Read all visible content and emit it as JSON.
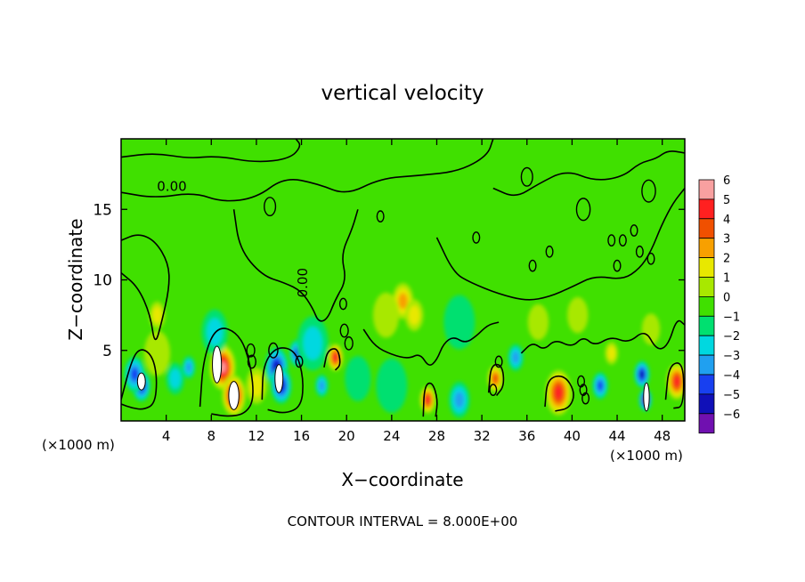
{
  "chart_data": {
    "type": "heatmap",
    "title": "vertical velocity",
    "xlabel": "X−coordinate",
    "ylabel": "Z−coordinate",
    "x_unit_left": "(×1000 m)",
    "x_unit_right": "(×1000 m)",
    "footer": "CONTOUR INTERVAL = 8.000E+00",
    "xlim": [
      0,
      50
    ],
    "ylim": [
      0,
      20
    ],
    "x_ticks": [
      4,
      8,
      12,
      16,
      20,
      24,
      28,
      32,
      36,
      40,
      44,
      48
    ],
    "x_tick_labels": [
      "4",
      "8",
      "12",
      "16",
      "20",
      "24",
      "28",
      "32",
      "36",
      "40",
      "44",
      "48"
    ],
    "y_ticks": [
      5,
      10,
      15
    ],
    "y_tick_labels": [
      "5",
      "10",
      "15"
    ],
    "contour_labels": [
      {
        "text": "0.00",
        "x": 4.5,
        "y": 16.3,
        "rotate": 0
      },
      {
        "text": "0.00",
        "x": 16.5,
        "y": 9.8,
        "rotate": -90
      }
    ],
    "colorbar": {
      "levels": [
        6,
        5,
        4,
        3,
        2,
        1,
        0,
        -1,
        -2,
        -3,
        -4,
        -5,
        -6
      ],
      "labels": [
        "6",
        "5",
        "4",
        "3",
        "2",
        "1",
        "0",
        "−1",
        "−2",
        "−3",
        "−4",
        "−5",
        "−6"
      ],
      "colors": [
        "#f8a0a0",
        "#ff2020",
        "#f05000",
        "#f8a000",
        "#e8e800",
        "#a8e800",
        "#40e000",
        "#00e070",
        "#00d8e0",
        "#20a0f0",
        "#1840f0",
        "#1010b8",
        "#7010b0"
      ]
    },
    "background_color": "#40e000",
    "features": [
      {
        "x": 1.8,
        "z": 2.5,
        "w": 0.7,
        "v": -5.6
      },
      {
        "x": 1.2,
        "z": 3.3,
        "w": 0.8,
        "v": -4
      },
      {
        "x": 3.2,
        "z": 7.5,
        "w": 0.6,
        "v": 2.5
      },
      {
        "x": 3.2,
        "z": 4.8,
        "w": 1.0,
        "v": 1
      },
      {
        "x": 4.8,
        "z": 3.0,
        "w": 0.7,
        "v": -2.5
      },
      {
        "x": 6.0,
        "z": 3.8,
        "w": 0.5,
        "v": -3
      },
      {
        "x": 9.0,
        "z": 3.8,
        "w": 1.0,
        "v": 6.5
      },
      {
        "x": 10.0,
        "z": 1.8,
        "w": 0.9,
        "v": 6.5
      },
      {
        "x": 8.3,
        "z": 6.3,
        "w": 1.0,
        "v": -2
      },
      {
        "x": 12.0,
        "z": 2.5,
        "w": 0.8,
        "v": 2
      },
      {
        "x": 13.8,
        "z": 3.8,
        "w": 0.9,
        "v": -5.6
      },
      {
        "x": 14.2,
        "z": 2.5,
        "w": 0.8,
        "v": -5
      },
      {
        "x": 15.6,
        "z": 4.8,
        "w": 0.6,
        "v": -4
      },
      {
        "x": 17.0,
        "z": 5.5,
        "w": 1.2,
        "v": -2
      },
      {
        "x": 19.0,
        "z": 4.5,
        "w": 0.6,
        "v": 5
      },
      {
        "x": 17.8,
        "z": 2.5,
        "w": 0.5,
        "v": -3
      },
      {
        "x": 25.0,
        "z": 8.5,
        "w": 0.8,
        "v": 3.5
      },
      {
        "x": 26.0,
        "z": 7.5,
        "w": 0.7,
        "v": 2.5
      },
      {
        "x": 23.5,
        "z": 7.5,
        "w": 1.0,
        "v": 1.6
      },
      {
        "x": 27.2,
        "z": 1.5,
        "w": 0.6,
        "v": 5
      },
      {
        "x": 30.0,
        "z": 1.5,
        "w": 0.8,
        "v": -3.5
      },
      {
        "x": 24.0,
        "z": 2.5,
        "w": 1.2,
        "v": -1.6
      },
      {
        "x": 33.2,
        "z": 3.0,
        "w": 0.6,
        "v": 4.5
      },
      {
        "x": 35.0,
        "z": 4.5,
        "w": 0.6,
        "v": -3
      },
      {
        "x": 38.8,
        "z": 2.0,
        "w": 1.0,
        "v": 5
      },
      {
        "x": 42.5,
        "z": 2.5,
        "w": 0.6,
        "v": -4.5
      },
      {
        "x": 43.5,
        "z": 4.8,
        "w": 0.5,
        "v": 2.5
      },
      {
        "x": 46.5,
        "z": 1.5,
        "w": 0.5,
        "v": -6.5
      },
      {
        "x": 46.2,
        "z": 3.3,
        "w": 0.6,
        "v": -5
      },
      {
        "x": 49.3,
        "z": 2.8,
        "w": 0.8,
        "v": 5
      },
      {
        "x": 40.5,
        "z": 7.5,
        "w": 0.8,
        "v": 1.2
      },
      {
        "x": 37.0,
        "z": 7.0,
        "w": 0.8,
        "v": 1.2
      },
      {
        "x": 30.0,
        "z": 7.0,
        "w": 1.2,
        "v": -1.2
      },
      {
        "x": 21.0,
        "z": 3.0,
        "w": 1.0,
        "v": -1.5
      },
      {
        "x": 47.0,
        "z": 6.5,
        "w": 0.7,
        "v": 1.8
      }
    ],
    "contours": [
      [
        [
          0,
          10.5
        ],
        [
          1.5,
          9.5
        ],
        [
          2.6,
          7.5
        ],
        [
          3.0,
          5.3
        ],
        [
          3.6,
          7.0
        ],
        [
          4.3,
          9.5
        ],
        [
          4.2,
          11.2
        ],
        [
          3.0,
          12.8
        ],
        [
          1.5,
          13.3
        ],
        [
          0,
          12.8
        ]
      ],
      [
        [
          0,
          1.5
        ],
        [
          1.0,
          4.5
        ],
        [
          1.8,
          5.2
        ],
        [
          2.8,
          4.6
        ],
        [
          3.2,
          3.0
        ],
        [
          3.0,
          1.2
        ],
        [
          2.0,
          0.8
        ],
        [
          1.0,
          0.9
        ],
        [
          0,
          1.2
        ]
      ],
      [
        [
          7.0,
          1.0
        ],
        [
          7.3,
          4.5
        ],
        [
          8.5,
          6.8
        ],
        [
          10.5,
          6.2
        ],
        [
          11.5,
          4.0
        ],
        [
          11.8,
          1.5
        ],
        [
          11.0,
          0.5
        ],
        [
          9.5,
          0.3
        ],
        [
          8.0,
          0.5
        ]
      ],
      [
        [
          12.5,
          1.5
        ],
        [
          12.6,
          4.0
        ],
        [
          13.8,
          5.3
        ],
        [
          15.5,
          5.0
        ],
        [
          16.2,
          3.0
        ],
        [
          16.0,
          1.0
        ],
        [
          14.5,
          0.5
        ],
        [
          13.0,
          0.8
        ]
      ],
      [
        [
          18.0,
          3.8
        ],
        [
          18.3,
          5.0
        ],
        [
          19.2,
          5.2
        ],
        [
          19.5,
          4.0
        ],
        [
          19.0,
          3.6
        ]
      ],
      [
        [
          26.8,
          0.3
        ],
        [
          26.9,
          2.5
        ],
        [
          27.6,
          2.8
        ],
        [
          28.1,
          1.5
        ],
        [
          27.9,
          0.3
        ]
      ],
      [
        [
          32.6,
          2.0
        ],
        [
          32.8,
          4.0
        ],
        [
          33.8,
          4.0
        ],
        [
          34.0,
          2.5
        ],
        [
          33.3,
          1.8
        ]
      ],
      [
        [
          37.6,
          1.0
        ],
        [
          37.8,
          3.0
        ],
        [
          39.3,
          3.3
        ],
        [
          40.3,
          2.0
        ],
        [
          39.8,
          0.9
        ],
        [
          38.5,
          0.7
        ]
      ],
      [
        [
          48.3,
          1.5
        ],
        [
          48.6,
          4.0
        ],
        [
          49.9,
          4.2
        ],
        [
          49.9,
          1.0
        ],
        [
          49.0,
          0.9
        ]
      ],
      [
        [
          0,
          18.7
        ],
        [
          3.0,
          19.0
        ],
        [
          6.0,
          18.6
        ],
        [
          8.5,
          18.8
        ],
        [
          12.0,
          18.3
        ],
        [
          15.0,
          18.6
        ],
        [
          16.0,
          19.5
        ],
        [
          15.5,
          20.0
        ]
      ],
      [
        [
          0,
          16.2
        ],
        [
          3.0,
          15.8
        ],
        [
          6.5,
          16.2
        ],
        [
          9.0,
          15.5
        ],
        [
          12.0,
          15.8
        ],
        [
          14.5,
          17.3
        ],
        [
          17.5,
          16.8
        ],
        [
          20.0,
          16.0
        ],
        [
          23.0,
          17.2
        ],
        [
          26.5,
          17.4
        ],
        [
          30.0,
          17.7
        ],
        [
          32.5,
          18.8
        ],
        [
          33.0,
          20.0
        ]
      ],
      [
        [
          10.0,
          15.0
        ],
        [
          10.5,
          12.2
        ],
        [
          12.5,
          10.3
        ],
        [
          14.5,
          9.8
        ],
        [
          16.0,
          9.2
        ],
        [
          17.0,
          8.0
        ],
        [
          17.5,
          7.0
        ],
        [
          18.3,
          7.2
        ],
        [
          19.0,
          8.6
        ],
        [
          20.0,
          10.0
        ],
        [
          19.5,
          11.8
        ],
        [
          20.5,
          13.6
        ],
        [
          21.0,
          15.0
        ]
      ],
      [
        [
          28.0,
          13.0
        ],
        [
          29.5,
          10.5
        ],
        [
          31.0,
          9.8
        ],
        [
          33.5,
          9.0
        ],
        [
          36.0,
          8.5
        ],
        [
          38.0,
          8.8
        ],
        [
          40.0,
          9.5
        ],
        [
          42.0,
          10.3
        ],
        [
          44.5,
          10.0
        ],
        [
          46.0,
          10.8
        ],
        [
          47.0,
          12.0
        ],
        [
          48.0,
          14.0
        ],
        [
          49.0,
          15.5
        ],
        [
          50.0,
          16.5
        ]
      ],
      [
        [
          21.5,
          6.5
        ],
        [
          22.5,
          5.3
        ],
        [
          24.0,
          4.7
        ],
        [
          25.5,
          4.4
        ],
        [
          26.5,
          4.8
        ],
        [
          27.3,
          3.8
        ],
        [
          28.0,
          4.3
        ],
        [
          28.6,
          5.5
        ],
        [
          29.5,
          6.0
        ],
        [
          30.5,
          5.5
        ],
        [
          31.5,
          6.0
        ],
        [
          32.5,
          6.8
        ],
        [
          33.5,
          7.0
        ]
      ],
      [
        [
          33.0,
          16.5
        ],
        [
          35.0,
          15.8
        ],
        [
          37.0,
          16.8
        ],
        [
          39.5,
          17.8
        ],
        [
          42.0,
          17.0
        ],
        [
          44.5,
          17.3
        ],
        [
          46.0,
          18.3
        ],
        [
          47.5,
          18.6
        ],
        [
          48.5,
          19.2
        ],
        [
          50.0,
          19.0
        ]
      ],
      [
        [
          35.5,
          4.8
        ],
        [
          36.5,
          5.6
        ],
        [
          37.5,
          5.0
        ],
        [
          38.5,
          5.8
        ],
        [
          40.0,
          5.2
        ],
        [
          41.0,
          6.0
        ],
        [
          42.0,
          5.3
        ],
        [
          43.5,
          6.0
        ],
        [
          45.0,
          5.5
        ],
        [
          46.5,
          6.5
        ],
        [
          47.5,
          5.0
        ],
        [
          48.5,
          5.3
        ],
        [
          49.3,
          7.3
        ],
        [
          50.0,
          6.8
        ]
      ]
    ],
    "closed_loops": [
      {
        "x": 13.5,
        "z": 5.0,
        "r": 0.4
      },
      {
        "x": 11.5,
        "z": 5.0,
        "r": 0.35
      },
      {
        "x": 11.6,
        "z": 4.2,
        "r": 0.35
      },
      {
        "x": 15.8,
        "z": 4.2,
        "r": 0.3
      },
      {
        "x": 19.8,
        "z": 6.4,
        "r": 0.35
      },
      {
        "x": 20.2,
        "z": 5.5,
        "r": 0.35
      },
      {
        "x": 19.7,
        "z": 8.3,
        "r": 0.3
      },
      {
        "x": 33.5,
        "z": 4.2,
        "r": 0.3
      },
      {
        "x": 33.0,
        "z": 2.2,
        "r": 0.3
      },
      {
        "x": 40.8,
        "z": 2.8,
        "r": 0.3
      },
      {
        "x": 41.0,
        "z": 2.2,
        "r": 0.3
      },
      {
        "x": 41.2,
        "z": 1.6,
        "r": 0.3
      },
      {
        "x": 43.5,
        "z": 12.8,
        "r": 0.3
      },
      {
        "x": 44.5,
        "z": 12.8,
        "r": 0.3
      },
      {
        "x": 45.5,
        "z": 13.5,
        "r": 0.3
      },
      {
        "x": 46.0,
        "z": 12.0,
        "r": 0.3
      },
      {
        "x": 47.0,
        "z": 11.5,
        "r": 0.3
      },
      {
        "x": 44.0,
        "z": 11.0,
        "r": 0.3
      },
      {
        "x": 36.5,
        "z": 11.0,
        "r": 0.3
      },
      {
        "x": 38.0,
        "z": 12.0,
        "r": 0.3
      },
      {
        "x": 31.5,
        "z": 13.0,
        "r": 0.3
      },
      {
        "x": 13.2,
        "z": 15.2,
        "r": 0.5
      },
      {
        "x": 23.0,
        "z": 14.5,
        "r": 0.3
      },
      {
        "x": 36.0,
        "z": 17.3,
        "r": 0.5
      },
      {
        "x": 46.8,
        "z": 16.3,
        "r": 0.6
      },
      {
        "x": 41.0,
        "z": 15.0,
        "r": 0.6
      }
    ],
    "white_cores": [
      {
        "x": 1.8,
        "z": 2.8,
        "rx": 0.35,
        "rz": 0.6
      },
      {
        "x": 8.5,
        "z": 4.0,
        "rx": 0.4,
        "rz": 1.3
      },
      {
        "x": 10.0,
        "z": 1.8,
        "rx": 0.45,
        "rz": 1.0
      },
      {
        "x": 14.0,
        "z": 3.0,
        "rx": 0.35,
        "rz": 1.0
      },
      {
        "x": 46.6,
        "z": 1.7,
        "rx": 0.25,
        "rz": 1.0
      }
    ]
  }
}
